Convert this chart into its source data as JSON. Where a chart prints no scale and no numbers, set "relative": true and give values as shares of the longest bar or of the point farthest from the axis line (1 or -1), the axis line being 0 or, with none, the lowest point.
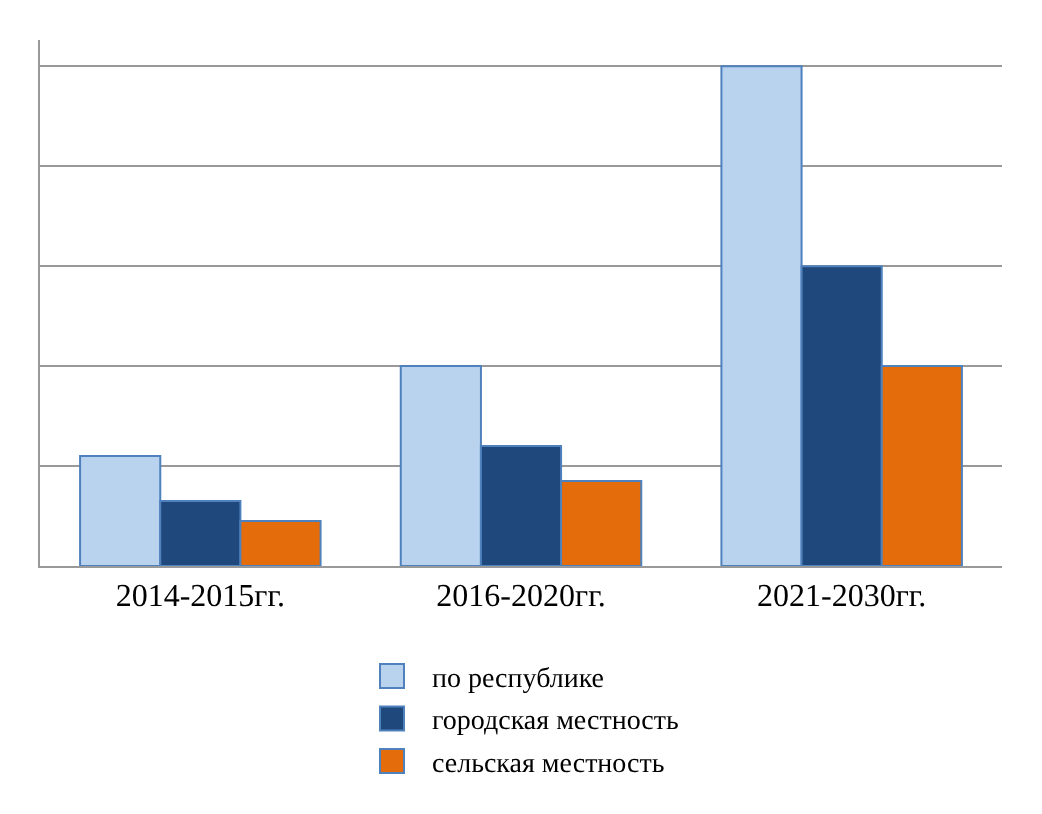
{
  "chart_data": {
    "type": "bar",
    "relative": true,
    "categories": [
      "2014-2015гг.",
      "2016-2020гг.",
      "2021-2030гг."
    ],
    "series": [
      {
        "name": "по республике",
        "color": "#b9d3ee",
        "values": [
          0.22,
          0.4,
          1
        ]
      },
      {
        "name": "городская местность",
        "color": "#1f497d",
        "values": [
          0.13,
          0.24,
          0.6
        ]
      },
      {
        "name": "сельская местность",
        "color": "#e46c0a",
        "values": [
          0.09,
          0.17,
          0.4
        ]
      }
    ],
    "grid": true,
    "legend": "bottom"
  }
}
